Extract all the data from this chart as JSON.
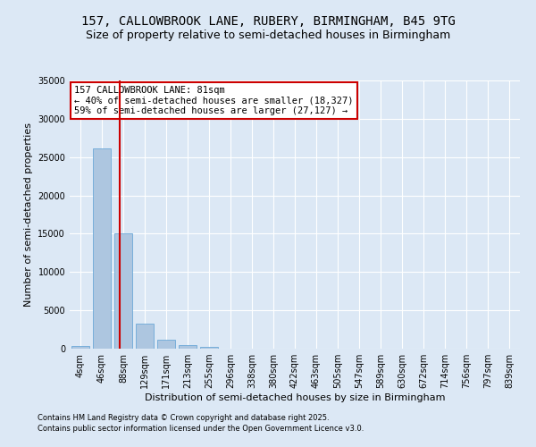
{
  "title": "157, CALLOWBROOK LANE, RUBERY, BIRMINGHAM, B45 9TG",
  "subtitle": "Size of property relative to semi-detached houses in Birmingham",
  "xlabel": "Distribution of semi-detached houses by size in Birmingham",
  "ylabel": "Number of semi-detached properties",
  "footer1": "Contains HM Land Registry data © Crown copyright and database right 2025.",
  "footer2": "Contains public sector information licensed under the Open Government Licence v3.0.",
  "annotation_title": "157 CALLOWBROOK LANE: 81sqm",
  "annotation_line2": "← 40% of semi-detached houses are smaller (18,327)",
  "annotation_line3": "59% of semi-detached houses are larger (27,127) →",
  "property_size": 81,
  "bar_categories": [
    "4sqm",
    "46sqm",
    "88sqm",
    "129sqm",
    "171sqm",
    "213sqm",
    "255sqm",
    "296sqm",
    "338sqm",
    "380sqm",
    "422sqm",
    "463sqm",
    "505sqm",
    "547sqm",
    "589sqm",
    "630sqm",
    "672sqm",
    "714sqm",
    "756sqm",
    "797sqm",
    "839sqm"
  ],
  "bar_values": [
    350,
    26100,
    15100,
    3250,
    1200,
    450,
    200,
    50,
    0,
    0,
    0,
    0,
    0,
    0,
    0,
    0,
    0,
    0,
    0,
    0,
    0
  ],
  "bar_color": "#adc6e0",
  "bar_edge_color": "#5a9fd4",
  "property_line_color": "#cc0000",
  "annotation_box_color": "#cc0000",
  "ylim": [
    0,
    35000
  ],
  "yticks": [
    0,
    5000,
    10000,
    15000,
    20000,
    25000,
    30000,
    35000
  ],
  "background_color": "#dce8f5",
  "grid_color": "#ffffff",
  "title_fontsize": 10,
  "subtitle_fontsize": 9,
  "annotation_fontsize": 7.5,
  "axis_label_fontsize": 8,
  "tick_fontsize": 7,
  "footer_fontsize": 6
}
